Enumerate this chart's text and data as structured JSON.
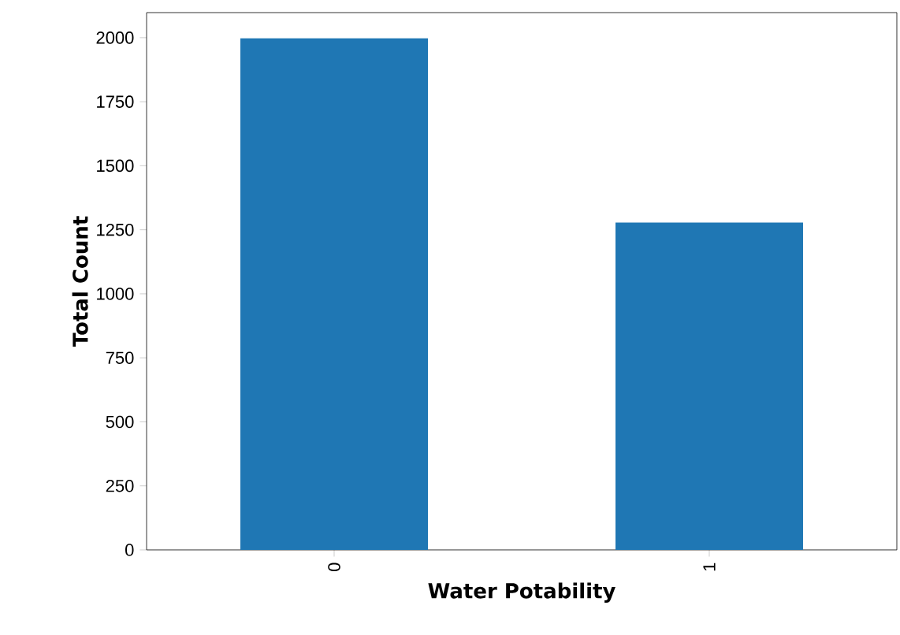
{
  "chart_data": {
    "type": "bar",
    "xlabel": "Water Potability",
    "ylabel": "Total Count",
    "categories": [
      "0",
      "1"
    ],
    "values": [
      1998,
      1278
    ],
    "color": "#1f77b4",
    "ylim": [
      0,
      2098
    ],
    "yticks": [
      0,
      250,
      500,
      750,
      1000,
      1250,
      1500,
      1750,
      2000
    ]
  }
}
